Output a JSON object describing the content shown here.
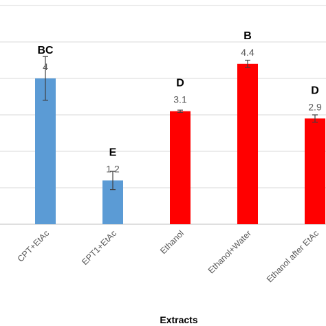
{
  "chart_data": {
    "type": "bar",
    "categories": [
      "CPT+EtAc",
      "EPT1+EtAc",
      "Ethanol",
      "Ethanol+Water",
      "Ethanol after EtAc"
    ],
    "values": [
      4,
      1.2,
      3.1,
      4.4,
      2.9
    ],
    "errors": [
      0.6,
      0.25,
      0.03,
      0.1,
      0.1
    ],
    "value_labels": [
      "4",
      "1.2",
      "3.1",
      "4.4",
      "2.9"
    ],
    "significance_letters": [
      "BC",
      "E",
      "D",
      "B",
      "D"
    ],
    "colors": [
      "#5b9bd5",
      "#5b9bd5",
      "#ff0000",
      "#ff0000",
      "#ff0000"
    ],
    "xlabel": "Extracts",
    "ylabel": "",
    "ylim": [
      0,
      6
    ],
    "grid": true
  }
}
